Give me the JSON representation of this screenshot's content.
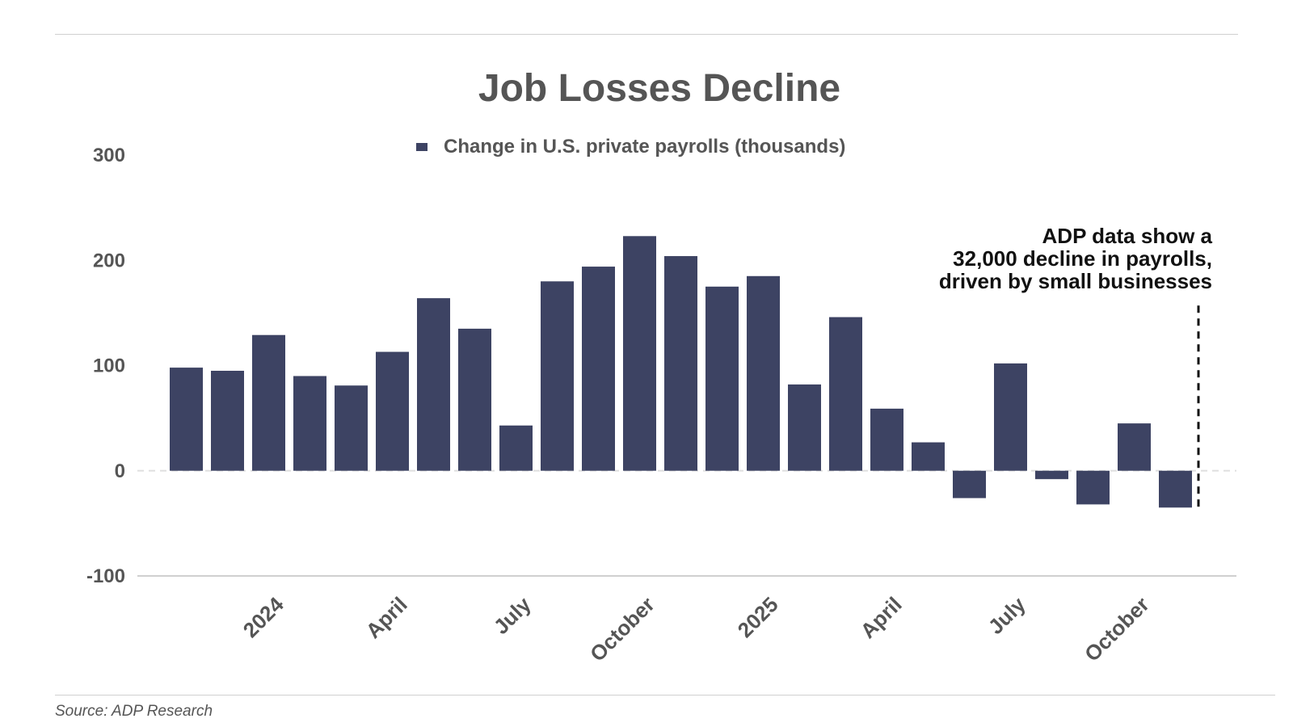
{
  "chart_data": {
    "type": "bar",
    "title": "Job Losses Decline",
    "series": [
      {
        "name": "Change in U.S. private payrolls (thousands)",
        "color": "#3d4363",
        "values": [
          98,
          95,
          129,
          90,
          81,
          113,
          164,
          135,
          43,
          180,
          194,
          223,
          204,
          175,
          185,
          82,
          146,
          59,
          27,
          -26,
          102,
          -8,
          -32,
          45,
          -35
        ]
      }
    ],
    "categories": [
      "2023-12",
      "2024-01",
      "2024-02",
      "2024-03",
      "2024-04",
      "2024-05",
      "2024-06",
      "2024-07",
      "2024-08",
      "2024-09",
      "2024-10",
      "2024-11",
      "2024-12",
      "2025-01",
      "2025-02",
      "2025-03",
      "2025-04",
      "2025-05",
      "2025-06",
      "2025-07",
      "2025-08",
      "2025-09",
      "2025-10",
      "2025-11",
      "2025-12"
    ],
    "y_ticks": [
      "300",
      "200",
      "100",
      "0",
      "-100"
    ],
    "ylim": [
      -100,
      300
    ],
    "x_tick_labels": [
      {
        "label": "2024",
        "category": "2024-02"
      },
      {
        "label": "April",
        "category": "2024-05"
      },
      {
        "label": "July",
        "category": "2024-08"
      },
      {
        "label": "October",
        "category": "2024-11"
      },
      {
        "label": "2025",
        "category": "2025-02"
      },
      {
        "label": "April",
        "category": "2025-05"
      },
      {
        "label": "July",
        "category": "2025-08"
      },
      {
        "label": "October",
        "category": "2025-11"
      }
    ],
    "legend_position": "top-center",
    "annotation": {
      "lines": [
        "ADP data show a",
        "32,000 decline in payrolls,",
        "driven by small businesses"
      ]
    },
    "source": "Source: ADP Research"
  },
  "colors": {
    "bar": "#3d4363",
    "text": "#555555",
    "zero_line": "#e0e0e0",
    "axis_line": "#d0d0d0",
    "marker_line": "#111111"
  }
}
